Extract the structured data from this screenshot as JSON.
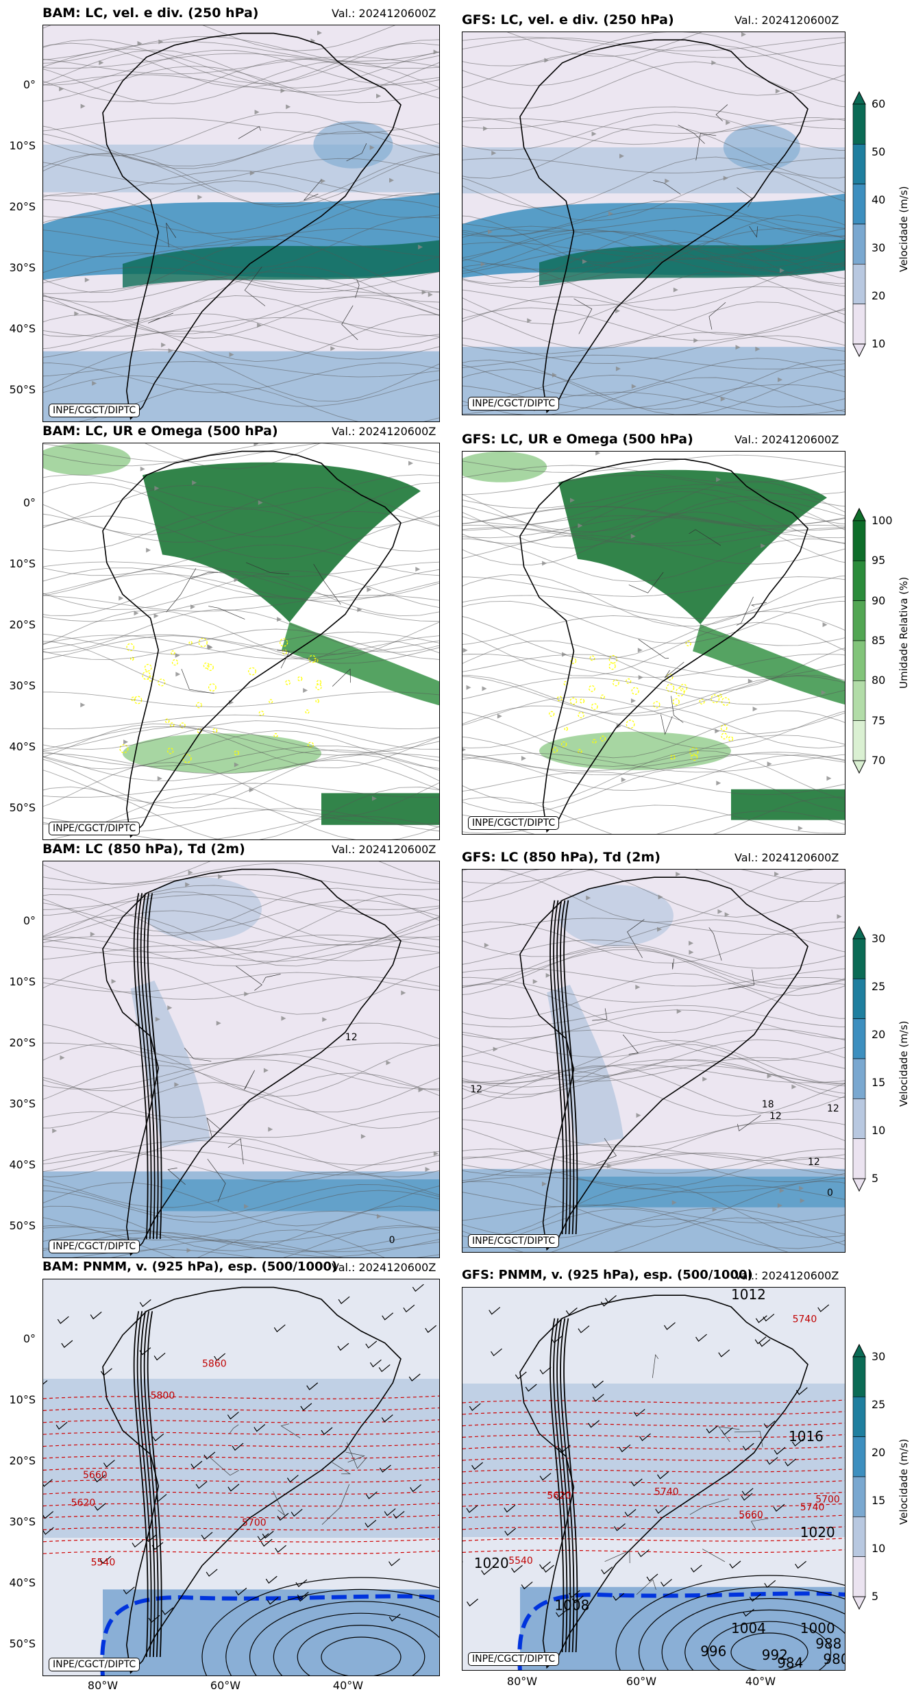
{
  "panels": [
    {
      "model": "BAM",
      "title": "BAM: LC, vel. e div. (250 hPa)",
      "valid": "Val.: 2024120600Z",
      "credit": "INPE/CGCT/DIPTC",
      "field": "wind250"
    },
    {
      "model": "GFS",
      "title": "GFS: LC, vel. e div. (250 hPa)",
      "valid": "Val.: 2024120600Z",
      "credit": "INPE/CGCT/DIPTC",
      "field": "wind250"
    },
    {
      "model": "BAM",
      "title": "BAM: LC, UR e Omega (500 hPa)",
      "valid": "Val.: 2024120600Z",
      "credit": "INPE/CGCT/DIPTC",
      "field": "rh500"
    },
    {
      "model": "GFS",
      "title": "GFS: LC, UR e Omega (500 hPa)",
      "valid": "Val.: 2024120600Z",
      "credit": "INPE/CGCT/DIPTC",
      "field": "rh500"
    },
    {
      "model": "BAM",
      "title": "BAM: LC (850 hPa), Td (2m)",
      "valid": "Val.: 2024120600Z",
      "credit": "INPE/CGCT/DIPTC",
      "field": "wind850"
    },
    {
      "model": "GFS",
      "title": "GFS: LC (850 hPa), Td (2m)",
      "valid": "Val.: 2024120600Z",
      "credit": "INPE/CGCT/DIPTC",
      "field": "wind850"
    },
    {
      "model": "BAM",
      "title": "BAM: PNMM, v. (925 hPa), esp. (500/1000)",
      "valid": "Val.: 2024120600Z",
      "credit": "INPE/CGCT/DIPTC",
      "field": "pnmm"
    },
    {
      "model": "GFS",
      "title": "GFS: PNMM, v. (925 hPa), esp. (500/1000)",
      "valid": "Val.: 2024120600Z",
      "credit": "INPE/CGCT/DIPTC",
      "field": "pnmm"
    }
  ],
  "axes": {
    "lat_labels": [
      "0°",
      "10°S",
      "20°S",
      "30°S",
      "40°S",
      "50°S"
    ],
    "lon_labels": [
      "80°W",
      "60°W",
      "40°W"
    ]
  },
  "contour_labels": {
    "bam850": [
      "12",
      "0"
    ],
    "gfs850": [
      "18",
      "12",
      "12",
      "12",
      "0",
      "12"
    ],
    "bam_pnmm": [
      "5860",
      "5620",
      "5660",
      "5540",
      "5700",
      "5800"
    ],
    "gfs_pnmm": [
      "5740",
      "5740",
      "5660",
      "5700",
      "5740",
      "5620",
      "5540",
      "1012",
      "1016",
      "1020",
      "1020",
      "1008",
      "1004",
      "1000",
      "996",
      "992",
      "988",
      "984",
      "980"
    ]
  },
  "colorbars": [
    {
      "label": "Velocidade (m/s)",
      "ticks": [
        "60",
        "50",
        "40",
        "30",
        "20",
        "10"
      ],
      "colors": [
        "#0b6b55",
        "#1f7f9f",
        "#3d8fbf",
        "#7aa8d0",
        "#b8c8e0",
        "#ebe3f0"
      ]
    },
    {
      "label": "Umidade Relativa (%)",
      "ticks": [
        "100",
        "95",
        "90",
        "85",
        "80",
        "75",
        "70"
      ],
      "colors": [
        "#0e6e2a",
        "#2b8c3b",
        "#52a653",
        "#82c47a",
        "#b2dca8",
        "#daf0d2"
      ]
    },
    {
      "label": "Velocidade (m/s)",
      "ticks": [
        "30",
        "25",
        "20",
        "15",
        "10",
        "5"
      ],
      "colors": [
        "#0b6b55",
        "#1f7f9f",
        "#3d8fbf",
        "#7aa8d0",
        "#b8c8e0",
        "#ebe3f0"
      ]
    },
    {
      "label": "Velocidade (m/s)",
      "ticks": [
        "30",
        "25",
        "20",
        "15",
        "10",
        "5"
      ],
      "colors": [
        "#0b6b55",
        "#1f7f9f",
        "#3d8fbf",
        "#7aa8d0",
        "#b8c8e0",
        "#ebe3f0"
      ]
    }
  ]
}
